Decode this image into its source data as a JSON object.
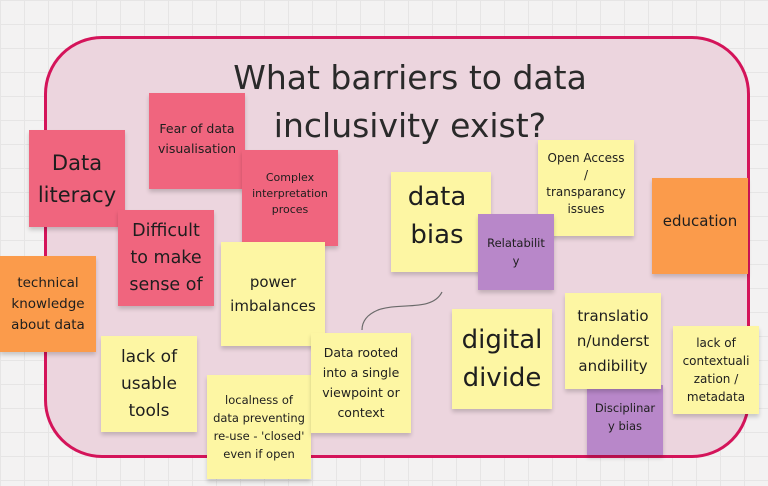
{
  "board": {
    "title_line1": "What barriers to data",
    "title_line2": "inclusivity exist?"
  },
  "colors": {
    "frame_border": "#d4145a",
    "frame_fill": "#ecd5de",
    "note_yellow": "#fdf6a3",
    "note_pink": "#f0657e",
    "note_orange": "#fb9b4b",
    "note_purple": "#b887c9"
  },
  "notes": {
    "data_literacy": "Data literacy",
    "fear_of_data_visualisation": "Fear of data visualisation",
    "complex_interpretation": "Complex interpretation proces",
    "difficult_to_make_sense": "Difficult to make sense of",
    "technical_knowledge": "technical knowledge about data",
    "power_imbalances": "power imbalances",
    "lack_of_usable_tools": "lack of usable tools",
    "localness_of_data": "localness of data preventing re-use - 'closed' even if open",
    "data_rooted": "Data rooted into a single viewpoint or context",
    "data_bias": "data bias",
    "relatability": "Relatability",
    "open_access": "Open Access / transparancy issues",
    "education": "education",
    "digital_divide": "digital divide",
    "translation": "translatio n/underst andibility",
    "disciplinary_bias": "Disciplinary bias",
    "lack_of_contextualization": "lack of contextuali zation / metadata"
  }
}
